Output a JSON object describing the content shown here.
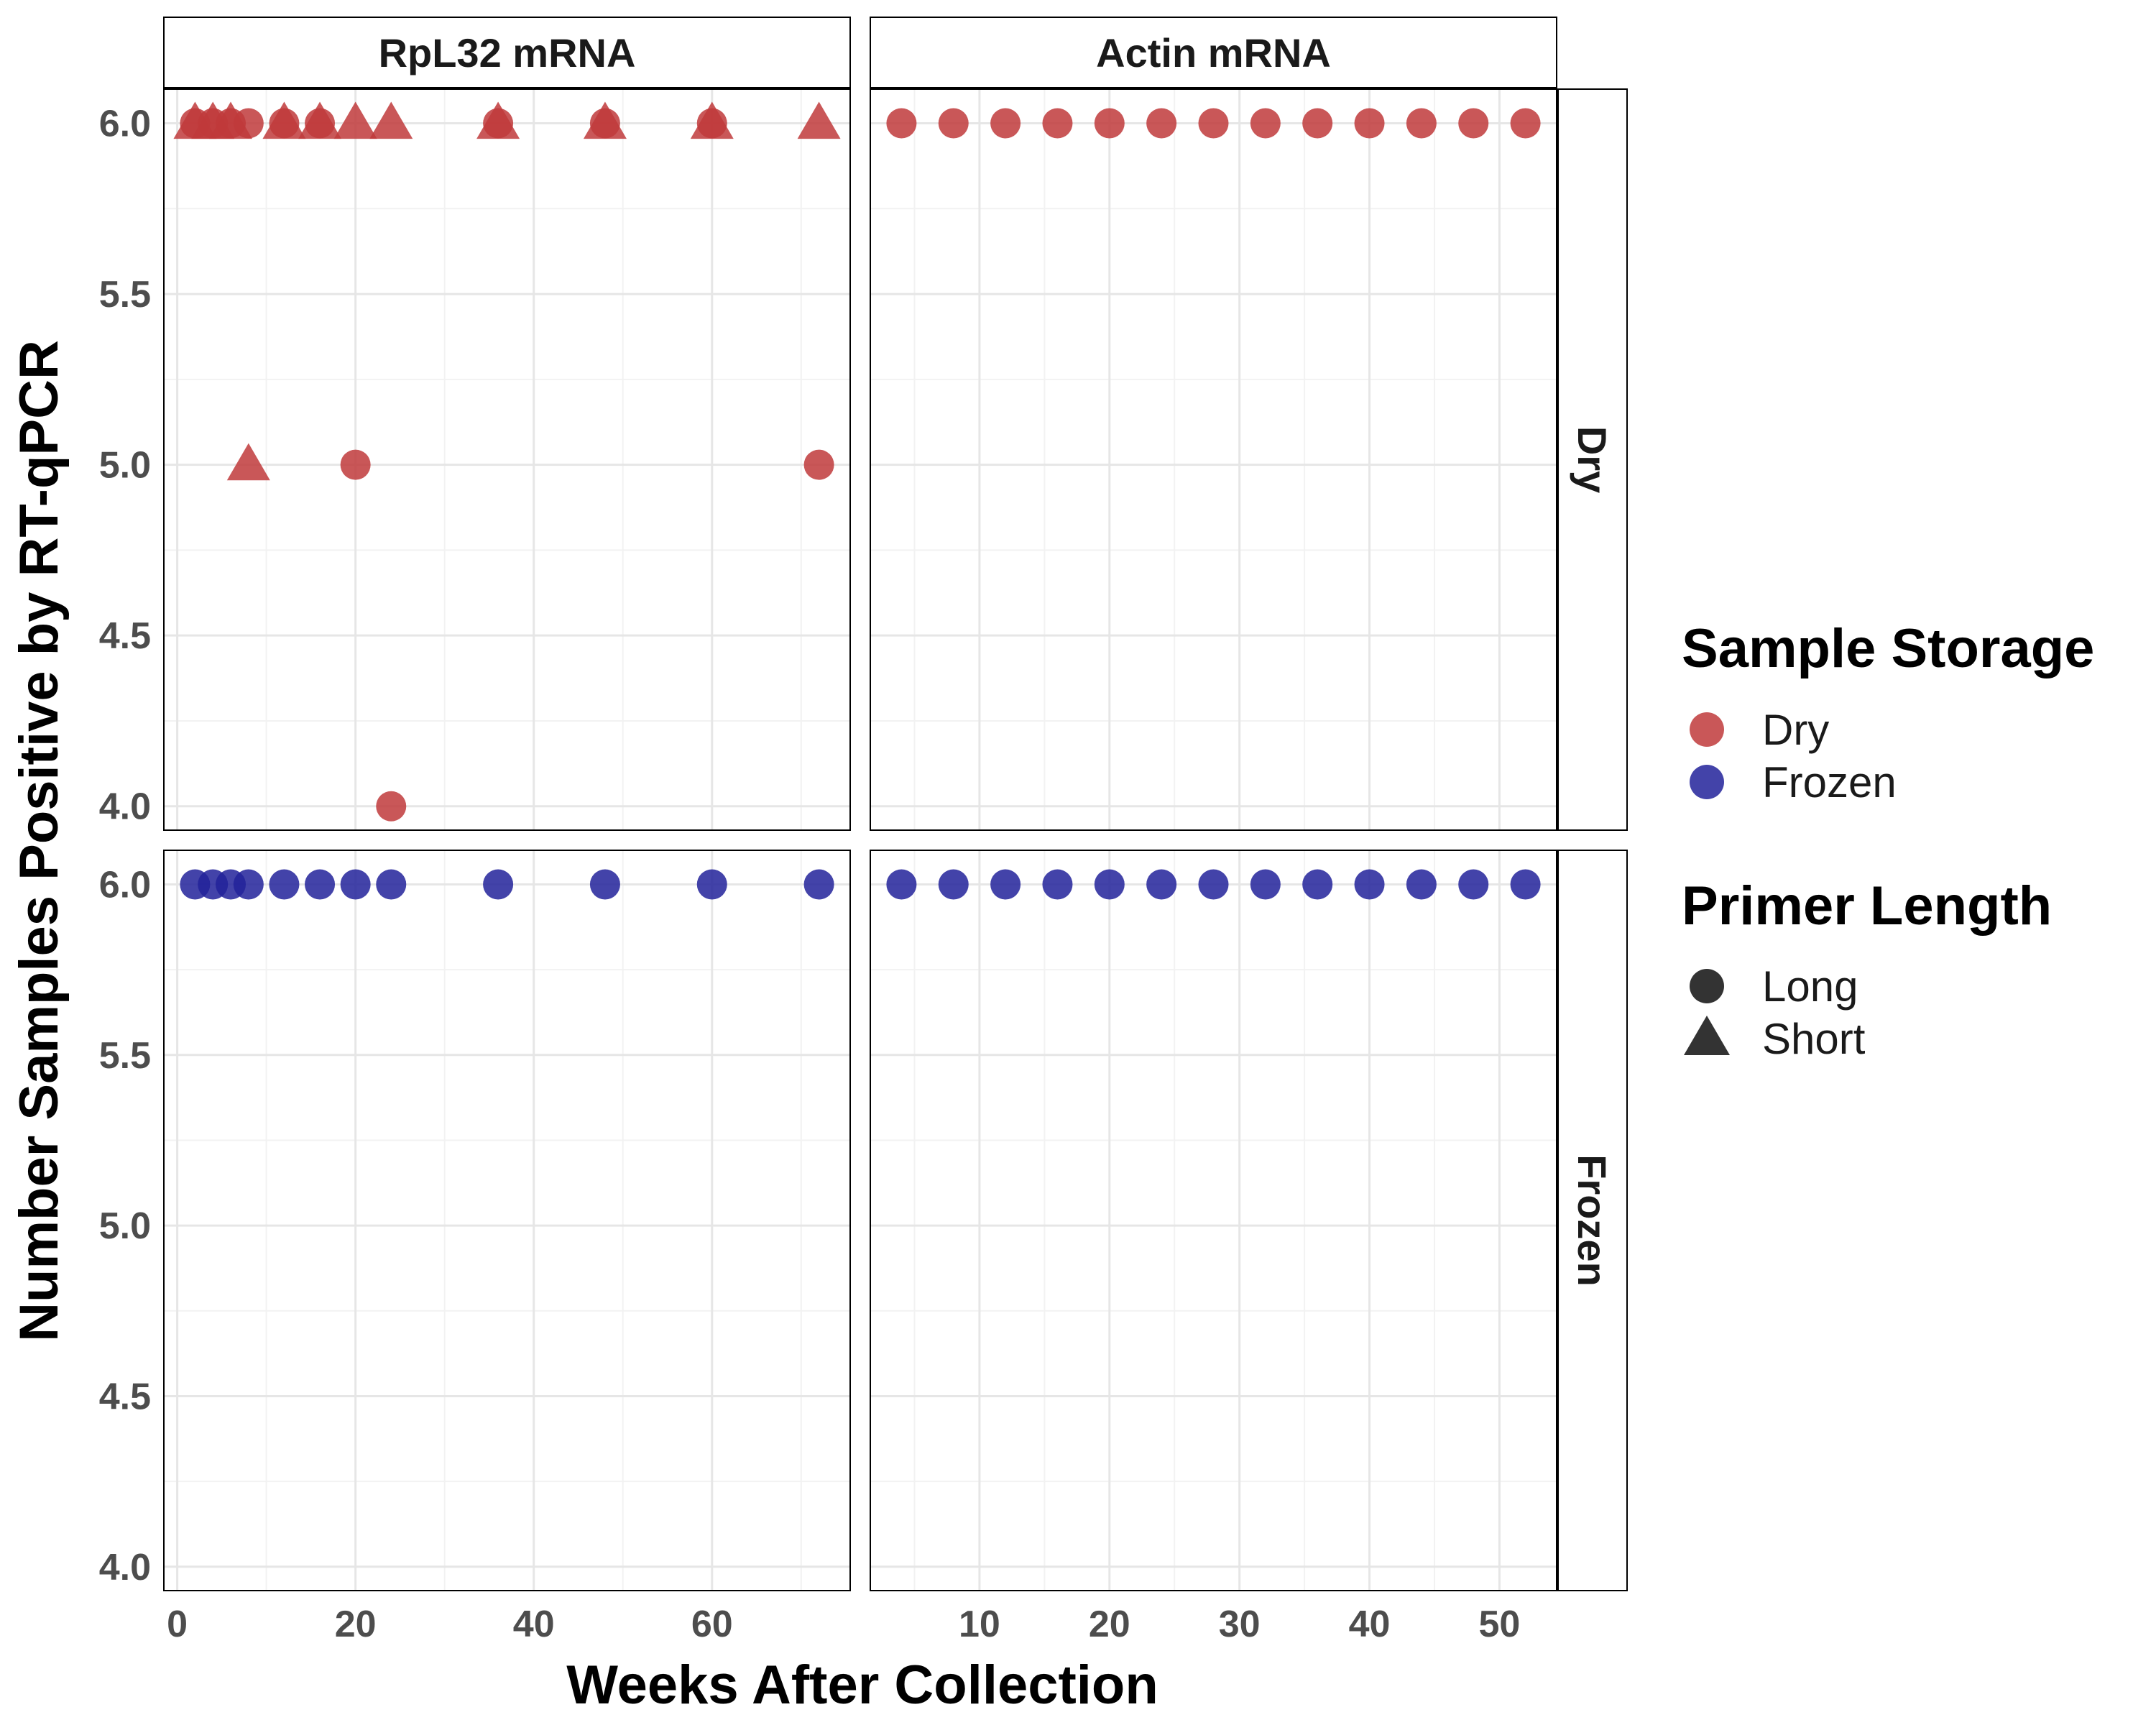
{
  "chart_data": {
    "type": "scatter",
    "facets": {
      "columns": [
        "RpL32 mRNA",
        "Actin mRNA"
      ],
      "rows": [
        "Dry",
        "Frozen"
      ]
    },
    "xlabel": "Weeks After Collection",
    "ylabel": "Number Samples Positive by RT-qPCR",
    "ylim": [
      3.93,
      6.1
    ],
    "yticks": [
      "4.0",
      "4.5",
      "5.0",
      "5.5",
      "6.0"
    ],
    "yticks_values": [
      4.0,
      4.5,
      5.0,
      5.5,
      6.0
    ],
    "panels": [
      {
        "column": "RpL32 mRNA",
        "row": "Dry",
        "xlim": [
          -1.5,
          75.5
        ],
        "xticks": [
          "0",
          "20",
          "40",
          "60"
        ],
        "xticks_values": [
          0,
          20,
          40,
          60
        ],
        "series": [
          {
            "storage": "Dry",
            "primer": "Long",
            "x": [
              2,
              4,
              6,
              8,
              12,
              16,
              20,
              24,
              36,
              48,
              60,
              72
            ],
            "y": [
              6,
              6,
              6,
              6,
              6,
              6,
              5,
              4,
              6,
              6,
              6,
              5
            ]
          },
          {
            "storage": "Dry",
            "primer": "Short",
            "x": [
              2,
              4,
              6,
              8,
              12,
              16,
              20,
              24,
              36,
              48,
              60,
              72
            ],
            "y": [
              6,
              6,
              6,
              5,
              6,
              6,
              6,
              6,
              6,
              6,
              6,
              6
            ]
          }
        ]
      },
      {
        "column": "Actin mRNA",
        "row": "Dry",
        "xlim": [
          1.6,
          54.4
        ],
        "xticks": [
          "10",
          "20",
          "30",
          "40",
          "50"
        ],
        "xticks_values": [
          10,
          20,
          30,
          40,
          50
        ],
        "series": [
          {
            "storage": "Dry",
            "primer": "Long",
            "x": [
              4,
              8,
              12,
              16,
              20,
              24,
              28,
              32,
              36,
              40,
              44,
              48,
              52
            ],
            "y": [
              6,
              6,
              6,
              6,
              6,
              6,
              6,
              6,
              6,
              6,
              6,
              6,
              6
            ]
          }
        ]
      },
      {
        "column": "RpL32 mRNA",
        "row": "Frozen",
        "xlim": [
          -1.5,
          75.5
        ],
        "xticks": [
          "0",
          "20",
          "40",
          "60"
        ],
        "xticks_values": [
          0,
          20,
          40,
          60
        ],
        "series": [
          {
            "storage": "Frozen",
            "primer": "Long",
            "x": [
              2,
              4,
              6,
              8,
              12,
              16,
              20,
              24,
              36,
              48,
              60,
              72
            ],
            "y": [
              6,
              6,
              6,
              6,
              6,
              6,
              6,
              6,
              6,
              6,
              6,
              6
            ]
          }
        ]
      },
      {
        "column": "Actin mRNA",
        "row": "Frozen",
        "xlim": [
          1.6,
          54.4
        ],
        "xticks": [
          "10",
          "20",
          "30",
          "40",
          "50"
        ],
        "xticks_values": [
          10,
          20,
          30,
          40,
          50
        ],
        "series": [
          {
            "storage": "Frozen",
            "primer": "Long",
            "x": [
              4,
              8,
              12,
              16,
              20,
              24,
              28,
              32,
              36,
              40,
              44,
              48,
              52
            ],
            "y": [
              6,
              6,
              6,
              6,
              6,
              6,
              6,
              6,
              6,
              6,
              6,
              6,
              6
            ]
          }
        ]
      }
    ],
    "legend": {
      "placement": "right",
      "storage": {
        "title": "Sample Storage",
        "items": [
          {
            "label": "Dry",
            "color": "#c0393b"
          },
          {
            "label": "Frozen",
            "color": "#22229a"
          }
        ]
      },
      "primer": {
        "title": "Primer Length",
        "items": [
          {
            "label": "Long",
            "shape": "circle"
          },
          {
            "label": "Short",
            "shape": "triangle"
          }
        ]
      }
    },
    "grid": true
  }
}
